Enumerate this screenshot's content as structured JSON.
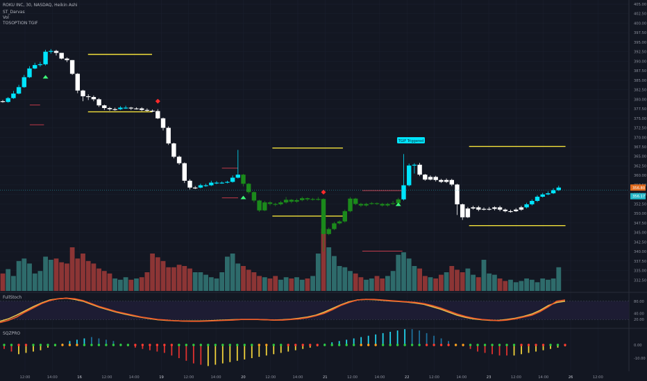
{
  "header": {
    "symbol_line": "ROKU INC, 30, NASDAQ, Heikin Ashi",
    "indicators": [
      "ST_Darvas",
      "Vol",
      "TOSOPTION TGIF"
    ]
  },
  "panes": {
    "stoch_label": "FullStoch",
    "sqz_label": "SQZPRO"
  },
  "annotation": {
    "label": "TGIF Triggered"
  },
  "colors": {
    "bull_cyan": "#00e5ff",
    "bear_white": "#ffffff",
    "bull_green": "#1b8a1b",
    "vol_up": "#2e6b6b",
    "vol_down": "#8c3535",
    "darvas": "#f5e33b",
    "stoch_k": "#f05a28",
    "stoch_d": "#e8c050",
    "price_tag": "#e06b1f",
    "last_tag": "#25b8c8"
  },
  "chart_data": {
    "type": "candlestick",
    "price_axis": {
      "min": 330,
      "max": 405,
      "ticks": [
        "405.00",
        "402.50",
        "400.00",
        "397.50",
        "395.00",
        "392.50",
        "390.00",
        "387.50",
        "385.00",
        "382.50",
        "380.00",
        "377.50",
        "375.00",
        "372.50",
        "370.00",
        "367.50",
        "365.00",
        "362.50",
        "360.00",
        "357.50",
        "355.00",
        "352.50",
        "350.00",
        "347.50",
        "345.00",
        "342.50",
        "340.00",
        "337.50",
        "335.00",
        "332.50"
      ],
      "current_price": "356.80",
      "last_price": "356.17"
    },
    "x_ticks": [
      "12:00",
      "14:00",
      "16",
      "12:00",
      "14:00",
      "19",
      "12:00",
      "14:00",
      "20",
      "12:00",
      "14:00",
      "21",
      "12:00",
      "14:00",
      "22",
      "12:00",
      "14:00",
      "23",
      "12:00",
      "14:00",
      "26",
      "12:00"
    ],
    "candles": [
      [
        379.5,
        379.3,
        379.8,
        379.1,
        "w"
      ],
      [
        379.3,
        380.3,
        380.6,
        379.1,
        "c"
      ],
      [
        380.3,
        381.5,
        382.2,
        380.1,
        "c"
      ],
      [
        381.5,
        383.2,
        383.8,
        381.3,
        "c"
      ],
      [
        383.2,
        385.8,
        386.4,
        383.0,
        "c"
      ],
      [
        385.8,
        388.1,
        388.7,
        385.6,
        "c"
      ],
      [
        388.1,
        389.0,
        389.6,
        387.9,
        "c"
      ],
      [
        389.0,
        389.2,
        389.8,
        388.6,
        "c"
      ],
      [
        389.2,
        392.5,
        393.0,
        388.9,
        "c"
      ],
      [
        392.5,
        392.7,
        393.2,
        392.0,
        "c"
      ],
      [
        392.7,
        392.2,
        393.0,
        391.5,
        "w"
      ],
      [
        392.2,
        390.7,
        391.3,
        390.5,
        "w"
      ],
      [
        390.7,
        390.3,
        391.0,
        389.8,
        "w"
      ],
      [
        390.3,
        386.7,
        390.3,
        386.4,
        "w"
      ],
      [
        386.7,
        382.3,
        386.9,
        381.6,
        "w"
      ],
      [
        382.3,
        380.8,
        382.5,
        379.5,
        "w"
      ],
      [
        380.8,
        380.6,
        381.3,
        379.8,
        "w"
      ],
      [
        380.6,
        380.0,
        381.0,
        379.5,
        "w"
      ],
      [
        380.0,
        378.4,
        380.3,
        378.0,
        "w"
      ],
      [
        378.4,
        377.7,
        378.6,
        377.2,
        "w"
      ],
      [
        377.7,
        377.4,
        378.0,
        377.0,
        "w"
      ],
      [
        377.4,
        377.4,
        377.8,
        377.0,
        "w"
      ],
      [
        377.4,
        377.8,
        378.2,
        377.2,
        "c"
      ],
      [
        377.8,
        377.8,
        378.3,
        377.5,
        "c"
      ],
      [
        377.8,
        377.6,
        378.0,
        377.2,
        "w"
      ],
      [
        377.6,
        377.6,
        377.9,
        377.3,
        "w"
      ],
      [
        377.6,
        377.2,
        377.9,
        376.9,
        "w"
      ],
      [
        377.2,
        377.0,
        377.6,
        376.8,
        "w"
      ],
      [
        377.0,
        376.9,
        377.3,
        376.6,
        "w"
      ],
      [
        376.9,
        375.0,
        377.4,
        374.8,
        "w"
      ],
      [
        375.0,
        372.5,
        375.2,
        371.8,
        "w"
      ],
      [
        372.5,
        368.4,
        372.9,
        368.0,
        "w"
      ],
      [
        368.4,
        364.9,
        368.6,
        364.5,
        "w"
      ],
      [
        364.9,
        363.2,
        365.2,
        362.8,
        "w"
      ],
      [
        363.2,
        358.6,
        363.4,
        358.0,
        "w"
      ],
      [
        358.6,
        356.8,
        359.0,
        356.3,
        "w"
      ],
      [
        356.8,
        356.8,
        357.2,
        356.4,
        "w"
      ],
      [
        356.8,
        357.4,
        357.8,
        356.6,
        "c"
      ],
      [
        357.4,
        357.4,
        357.8,
        357.0,
        "c"
      ],
      [
        357.4,
        358.1,
        358.6,
        357.2,
        "c"
      ],
      [
        358.1,
        358.1,
        358.5,
        357.7,
        "c"
      ],
      [
        358.1,
        358.1,
        358.4,
        357.8,
        "c"
      ],
      [
        358.1,
        358.3,
        358.6,
        357.9,
        "c"
      ],
      [
        358.3,
        359.4,
        360.0,
        358.1,
        "c"
      ],
      [
        359.4,
        360.2,
        366.7,
        359.2,
        "c"
      ],
      [
        360.2,
        357.8,
        360.4,
        357.1,
        "g"
      ],
      [
        357.8,
        355.6,
        358.0,
        355.2,
        "g"
      ],
      [
        355.6,
        353.4,
        355.8,
        352.9,
        "g"
      ],
      [
        353.4,
        350.8,
        353.6,
        350.4,
        "g"
      ],
      [
        350.8,
        352.9,
        353.3,
        350.6,
        "g"
      ],
      [
        352.9,
        352.5,
        353.2,
        352.1,
        "g"
      ],
      [
        352.5,
        352.4,
        352.8,
        351.9,
        "g"
      ],
      [
        352.4,
        352.9,
        353.3,
        352.1,
        "g"
      ],
      [
        352.9,
        353.6,
        354.3,
        352.6,
        "g"
      ],
      [
        353.6,
        353.1,
        353.8,
        352.7,
        "g"
      ],
      [
        353.1,
        353.5,
        353.9,
        352.8,
        "g"
      ],
      [
        353.5,
        354.0,
        354.4,
        353.2,
        "g"
      ],
      [
        354.0,
        353.7,
        354.2,
        353.3,
        "g"
      ],
      [
        353.7,
        353.8,
        354.1,
        353.4,
        "g"
      ],
      [
        353.8,
        353.8,
        354.3,
        353.4,
        "g"
      ],
      [
        353.8,
        344.6,
        354.0,
        340.0,
        "g"
      ],
      [
        344.6,
        345.9,
        346.3,
        344.3,
        "g"
      ],
      [
        345.9,
        347.4,
        347.8,
        345.6,
        "g"
      ],
      [
        347.4,
        347.9,
        348.2,
        347.1,
        "g"
      ],
      [
        347.9,
        350.6,
        351.0,
        347.6,
        "g"
      ],
      [
        350.6,
        353.9,
        354.3,
        350.3,
        "g"
      ],
      [
        353.9,
        352.5,
        354.1,
        352.2,
        "g"
      ],
      [
        352.5,
        352.1,
        352.8,
        351.7,
        "g"
      ],
      [
        352.1,
        352.5,
        352.8,
        351.8,
        "g"
      ],
      [
        352.5,
        352.7,
        353.0,
        352.3,
        "g"
      ],
      [
        352.7,
        352.5,
        352.9,
        352.2,
        "g"
      ],
      [
        352.5,
        352.1,
        352.8,
        351.8,
        "g"
      ],
      [
        352.1,
        352.5,
        352.8,
        351.8,
        "g"
      ],
      [
        352.5,
        352.7,
        353.3,
        352.2,
        "g"
      ],
      [
        352.7,
        353.7,
        354.1,
        352.4,
        "g"
      ],
      [
        353.7,
        357.4,
        365.6,
        353.4,
        "c"
      ],
      [
        357.4,
        362.6,
        363.1,
        357.1,
        "c"
      ],
      [
        362.6,
        362.8,
        363.2,
        360.5,
        "c"
      ],
      [
        362.8,
        360.2,
        363.3,
        359.8,
        "w"
      ],
      [
        360.2,
        358.9,
        360.4,
        358.6,
        "w"
      ],
      [
        358.9,
        359.6,
        360.0,
        358.7,
        "w"
      ],
      [
        359.6,
        358.8,
        359.9,
        358.4,
        "w"
      ],
      [
        358.8,
        358.3,
        359.1,
        358.0,
        "w"
      ],
      [
        358.3,
        358.8,
        359.2,
        358.0,
        "w"
      ],
      [
        358.8,
        357.6,
        359.1,
        357.2,
        "w"
      ],
      [
        357.6,
        352.4,
        357.8,
        349.6,
        "w"
      ],
      [
        352.4,
        349.0,
        352.6,
        348.3,
        "w"
      ],
      [
        349.0,
        351.3,
        351.7,
        348.8,
        "w"
      ],
      [
        351.3,
        351.6,
        352.0,
        351.0,
        "w"
      ],
      [
        351.6,
        351.0,
        352.0,
        350.6,
        "w"
      ],
      [
        351.0,
        351.2,
        351.6,
        350.8,
        "w"
      ],
      [
        351.2,
        351.2,
        351.7,
        350.8,
        "w"
      ],
      [
        351.2,
        351.6,
        351.9,
        350.8,
        "w"
      ],
      [
        351.6,
        351.0,
        352.0,
        350.6,
        "w"
      ],
      [
        351.0,
        350.6,
        351.3,
        350.3,
        "w"
      ],
      [
        350.6,
        350.6,
        351.0,
        350.2,
        "w"
      ],
      [
        350.6,
        351.0,
        351.4,
        350.4,
        "w"
      ],
      [
        351.0,
        351.6,
        352.0,
        350.7,
        "w"
      ],
      [
        351.6,
        352.4,
        352.8,
        351.3,
        "c"
      ],
      [
        352.4,
        353.3,
        353.7,
        352.1,
        "c"
      ],
      [
        353.3,
        354.4,
        354.8,
        353.0,
        "c"
      ],
      [
        354.4,
        355.0,
        355.4,
        354.2,
        "c"
      ],
      [
        355.0,
        355.3,
        355.8,
        354.8,
        "c"
      ],
      [
        355.3,
        356.1,
        356.6,
        355.1,
        "c"
      ],
      [
        356.1,
        356.8,
        357.3,
        355.9,
        "c"
      ]
    ],
    "volume": [
      28,
      35,
      24,
      48,
      52,
      44,
      28,
      32,
      55,
      50,
      52,
      46,
      44,
      70,
      52,
      60,
      48,
      44,
      36,
      32,
      28,
      20,
      18,
      22,
      18,
      20,
      22,
      30,
      60,
      54,
      48,
      38,
      38,
      42,
      40,
      36,
      30,
      30,
      26,
      22,
      20,
      30,
      55,
      60,
      44,
      40,
      34,
      30,
      24,
      22,
      20,
      24,
      18,
      22,
      20,
      22,
      18,
      20,
      24,
      60,
      100,
      70,
      56,
      40,
      38,
      32,
      28,
      22,
      18,
      20,
      24,
      20,
      24,
      32,
      58,
      62,
      52,
      40,
      36,
      24,
      22,
      20,
      26,
      30,
      40,
      34,
      30,
      36,
      26,
      22,
      50,
      28,
      26,
      20,
      16,
      18,
      14,
      16,
      20,
      18,
      14,
      20,
      18,
      20,
      38
    ],
    "stoch": {
      "axis_ticks": [
        "80.00",
        "40.00",
        "20.00"
      ],
      "k": [
        10,
        17,
        28,
        44,
        58,
        72,
        82,
        88,
        90,
        88,
        82,
        72,
        62,
        54,
        46,
        40,
        34,
        28,
        24,
        20,
        18,
        16,
        15,
        14,
        14,
        15,
        16,
        17,
        18,
        20,
        20,
        20,
        19,
        18,
        18,
        20,
        22,
        26,
        32,
        40,
        52,
        66,
        76,
        84,
        86,
        86,
        84,
        82,
        80,
        78,
        76,
        72,
        66,
        58,
        48,
        38,
        30,
        24,
        20,
        18,
        16,
        18,
        22,
        28,
        34,
        46,
        62,
        80,
        84
      ],
      "d": [
        14,
        22,
        34,
        48,
        62,
        74,
        84,
        88,
        90,
        86,
        80,
        70,
        60,
        52,
        44,
        38,
        32,
        27,
        23,
        19,
        17,
        16,
        15,
        15,
        15,
        16,
        17,
        18,
        19,
        20,
        20,
        20,
        19,
        18,
        19,
        21,
        24,
        28,
        34,
        44,
        56,
        68,
        78,
        84,
        86,
        85,
        83,
        81,
        79,
        77,
        74,
        70,
        62,
        54,
        44,
        34,
        27,
        22,
        19,
        17,
        17,
        20,
        24,
        30,
        38,
        50,
        66,
        76,
        80
      ]
    },
    "sqz": {
      "axis_ticks": [
        "0.00",
        "-10.00"
      ],
      "momentum": [
        -3,
        -5,
        -7,
        -6,
        -5,
        -4,
        -2,
        -1,
        1,
        3,
        4,
        5,
        6,
        5,
        4,
        3,
        1,
        -1,
        -2,
        -3,
        -4,
        -5,
        -6,
        -8,
        -10,
        -12,
        -14,
        -15,
        -16,
        -15,
        -14,
        -13,
        -12,
        -11,
        -10,
        -9,
        -8,
        -7,
        -6,
        -5,
        -4,
        -3,
        -2,
        -1,
        1,
        2,
        3,
        4,
        5,
        6,
        7,
        8,
        9,
        10,
        11,
        12,
        12,
        11,
        9,
        7,
        5,
        3,
        1,
        -1,
        -3,
        -5,
        -6,
        -7,
        -8,
        -8,
        -8,
        -7,
        -6,
        -5,
        -4,
        -3,
        -2,
        -1
      ],
      "squeeze": [
        "g",
        "g",
        "r",
        "r",
        "g",
        "g",
        "g",
        "g",
        "o",
        "o",
        "o",
        "g",
        "g",
        "g",
        "g",
        "g",
        "g",
        "g",
        "r",
        "r",
        "r",
        "r",
        "r",
        "r",
        "g",
        "g",
        "g",
        "g",
        "g",
        "g",
        "g",
        "g",
        "g",
        "g",
        "g",
        "o",
        "o",
        "g",
        "g",
        "r",
        "r",
        "r",
        "r",
        "r",
        "g",
        "g",
        "g",
        "g",
        "g",
        "o",
        "o",
        "o",
        "g",
        "g",
        "g",
        "g",
        "g",
        "g",
        "r",
        "r",
        "r",
        "r",
        "o",
        "o",
        "g",
        "g",
        "g",
        "g",
        "g",
        "g",
        "g",
        "r",
        "r",
        "r",
        "r",
        "g",
        "g",
        "r"
      ]
    },
    "darvas_boxes": [
      {
        "top": 391.8,
        "bottom": 376.7,
        "from": 0.136,
        "to": 0.235
      },
      {
        "top": 367.2,
        "bottom": 349.3,
        "from": 0.421,
        "to": 0.53
      },
      {
        "top": 367.6,
        "bottom": 346.8,
        "from": 0.725,
        "to": 0.874
      }
    ],
    "tgif_levels": [
      {
        "price": 373.3,
        "from": 0.046,
        "to": 0.068
      },
      {
        "price": 361.9,
        "from": 0.343,
        "to": 0.368
      },
      {
        "price": 354.1,
        "from": 0.343,
        "to": 0.368
      },
      {
        "price": 356.0,
        "from": 0.56,
        "to": 0.622
      },
      {
        "price": 340.1,
        "from": 0.56,
        "to": 0.622
      },
      {
        "price": 378.5,
        "from": 0.046,
        "to": 0.062
      }
    ],
    "signals": [
      {
        "type": "buy",
        "index": 8,
        "price": 386.0
      },
      {
        "type": "sell",
        "index": 29,
        "price": 379.5
      },
      {
        "type": "buy",
        "index": 45,
        "price": 354.3
      },
      {
        "type": "sell",
        "index": 60,
        "price": 355.6
      },
      {
        "type": "buy",
        "index": 74,
        "price": 352.5
      }
    ]
  }
}
